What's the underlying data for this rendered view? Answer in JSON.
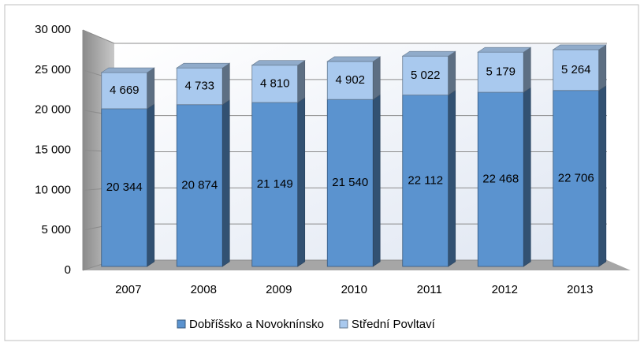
{
  "chart_data": {
    "type": "bar3d_stacked",
    "categories": [
      "2007",
      "2008",
      "2009",
      "2010",
      "2011",
      "2012",
      "2013"
    ],
    "series": [
      {
        "name": "Dobříšsko a Novoknínsko",
        "color": "#5b93cf",
        "values": [
          20344,
          20874,
          21149,
          21540,
          22112,
          22468,
          22706
        ],
        "value_labels": [
          "20 344",
          "20 874",
          "21 149",
          "21 540",
          "22 112",
          "22 468",
          "22 706"
        ]
      },
      {
        "name": "Střední Povltaví",
        "color": "#a9c9ee",
        "values": [
          4669,
          4733,
          4810,
          4902,
          5022,
          5179,
          5264
        ],
        "value_labels": [
          "4 669",
          "4 733",
          "4 810",
          "4 902",
          "5 022",
          "5 179",
          "5 264"
        ]
      }
    ],
    "ylim": [
      0,
      30000
    ],
    "yticks": [
      0,
      {
        "value": 5000,
        "label": "5 000"
      },
      {
        "value": 10000,
        "label": "10 000"
      },
      {
        "value": 15000,
        "label": "15 000"
      },
      {
        "value": 20000,
        "label": "20 000"
      },
      {
        "value": 25000,
        "label": "25 000"
      },
      {
        "value": 30000,
        "label": "30 000"
      }
    ],
    "grid": true,
    "legend": "bottom"
  }
}
